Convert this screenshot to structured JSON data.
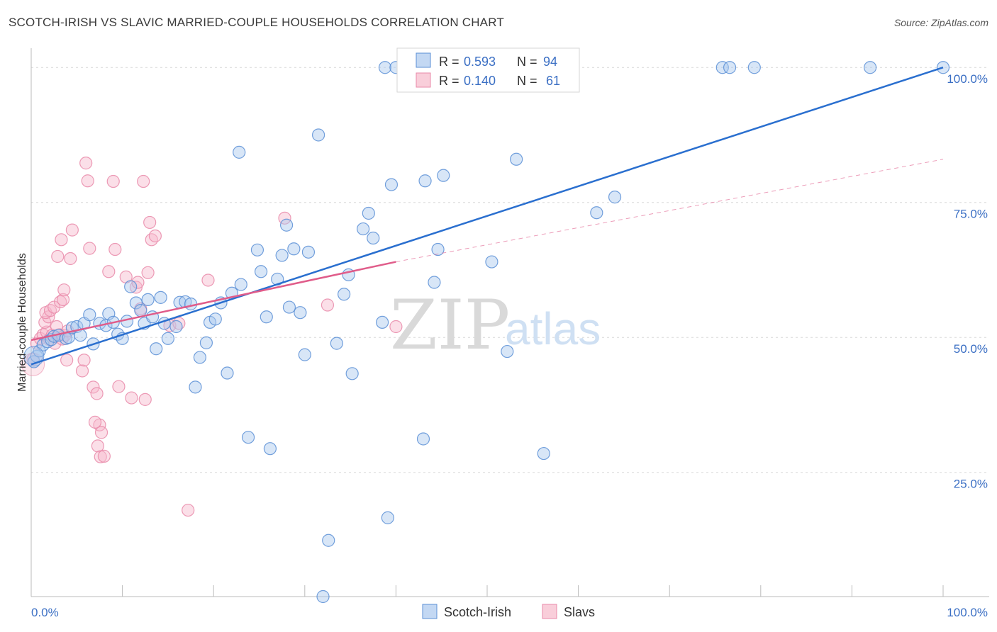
{
  "title": "SCOTCH-IRISH VS SLAVIC MARRIED-COUPLE HOUSEHOLDS CORRELATION CHART",
  "source": "Source: ZipAtlas.com",
  "watermark": {
    "zip": "ZIP",
    "atlas": "atlas"
  },
  "colors": {
    "blue_fill": "#a9c7ee",
    "blue_stroke": "#5b8fd6",
    "blue_line": "#2a6fcf",
    "pink_fill": "#f6b9cb",
    "pink_stroke": "#e98aa9",
    "pink_line": "#e05c8a",
    "grid": "#d9d9d9",
    "tick_text": "#3b6fc4"
  },
  "legend": {
    "rows": [
      {
        "r_label": "R = ",
        "r_value": "0.593",
        "n_label": "N = ",
        "n_value": "94"
      },
      {
        "r_label": "R = ",
        "r_value": "0.140",
        "n_label": "N = ",
        "n_value": "61"
      }
    ]
  },
  "chart_data": {
    "type": "scatter",
    "title": "SCOTCH-IRISH VS SLAVIC MARRIED-COUPLE HOUSEHOLDS CORRELATION CHART",
    "xlabel": "",
    "ylabel": "Married-couple Households",
    "xlim": [
      0,
      100
    ],
    "ylim": [
      2,
      102
    ],
    "y_ticks": [
      {
        "value": 25,
        "label": "25.0%"
      },
      {
        "value": 50,
        "label": "50.0%"
      },
      {
        "value": 75,
        "label": "75.0%"
      },
      {
        "value": 100,
        "label": "100.0%"
      }
    ],
    "x_tick_labels": {
      "min": "0.0%",
      "max": "100.0%"
    },
    "series": [
      {
        "name": "Scotch-Irish",
        "points": [
          [
            0.3,
            45.5
          ],
          [
            0.6,
            46.5
          ],
          [
            0.9,
            47.5
          ],
          [
            1.3,
            48.6
          ],
          [
            1.8,
            49.2
          ],
          [
            2.2,
            49.6
          ],
          [
            2.5,
            50.2
          ],
          [
            3.0,
            50.4
          ],
          [
            3.8,
            49.8
          ],
          [
            4.1,
            50.0
          ],
          [
            4.5,
            51.8
          ],
          [
            5.0,
            52.0
          ],
          [
            5.4,
            50.4
          ],
          [
            5.8,
            52.6
          ],
          [
            6.4,
            54.2
          ],
          [
            6.8,
            48.8
          ],
          [
            7.5,
            52.6
          ],
          [
            8.2,
            52.2
          ],
          [
            8.5,
            54.4
          ],
          [
            9.0,
            52.8
          ],
          [
            9.5,
            50.6
          ],
          [
            10.0,
            49.8
          ],
          [
            10.5,
            53.0
          ],
          [
            10.9,
            59.4
          ],
          [
            11.5,
            56.4
          ],
          [
            12.0,
            55.0
          ],
          [
            12.4,
            52.6
          ],
          [
            12.8,
            57.0
          ],
          [
            13.3,
            53.8
          ],
          [
            13.7,
            47.9
          ],
          [
            14.2,
            57.4
          ],
          [
            14.6,
            52.6
          ],
          [
            15.0,
            49.8
          ],
          [
            15.9,
            52.0
          ],
          [
            16.3,
            56.5
          ],
          [
            16.9,
            56.6
          ],
          [
            17.5,
            56.2
          ],
          [
            18.0,
            40.8
          ],
          [
            18.5,
            46.3
          ],
          [
            19.2,
            49.0
          ],
          [
            19.6,
            52.8
          ],
          [
            20.2,
            53.4
          ],
          [
            20.8,
            56.4
          ],
          [
            21.5,
            43.4
          ],
          [
            22.0,
            58.2
          ],
          [
            22.8,
            84.3
          ],
          [
            23.0,
            59.8
          ],
          [
            23.8,
            31.5
          ],
          [
            24.8,
            66.2
          ],
          [
            25.2,
            62.2
          ],
          [
            25.8,
            53.8
          ],
          [
            26.2,
            29.4
          ],
          [
            27.0,
            60.8
          ],
          [
            27.5,
            65.2
          ],
          [
            28.0,
            70.8
          ],
          [
            28.3,
            55.6
          ],
          [
            28.8,
            66.4
          ],
          [
            29.5,
            54.6
          ],
          [
            30.0,
            46.8
          ],
          [
            30.4,
            65.8
          ],
          [
            31.5,
            87.5
          ],
          [
            32.0,
            2.0
          ],
          [
            32.6,
            12.4
          ],
          [
            33.5,
            48.9
          ],
          [
            34.3,
            58.0
          ],
          [
            34.8,
            61.6
          ],
          [
            35.2,
            43.3
          ],
          [
            36.4,
            70.1
          ],
          [
            37.0,
            73.0
          ],
          [
            37.5,
            68.4
          ],
          [
            38.5,
            52.8
          ],
          [
            38.8,
            100.0
          ],
          [
            39.1,
            16.6
          ],
          [
            39.5,
            78.3
          ],
          [
            40.0,
            100.0
          ],
          [
            41.0,
            100.0
          ],
          [
            42.0,
            100.0
          ],
          [
            43.0,
            31.2
          ],
          [
            43.2,
            79.0
          ],
          [
            44.2,
            60.2
          ],
          [
            44.6,
            66.3
          ],
          [
            45.2,
            80.0
          ],
          [
            50.5,
            64.0
          ],
          [
            52.2,
            47.4
          ],
          [
            53.2,
            83.0
          ],
          [
            55.5,
            100.0
          ],
          [
            56.2,
            28.5
          ],
          [
            62.0,
            73.1
          ],
          [
            64.0,
            76.0
          ],
          [
            75.8,
            100.0
          ],
          [
            76.6,
            100.0
          ],
          [
            79.3,
            100.0
          ],
          [
            92.0,
            100.0
          ],
          [
            100.0,
            100.0
          ]
        ]
      },
      {
        "name": "Slavs",
        "points": [
          [
            0.2,
            46.0
          ],
          [
            0.6,
            48.9
          ],
          [
            1.0,
            49.8
          ],
          [
            1.3,
            50.5
          ],
          [
            1.7,
            51.0
          ],
          [
            2.0,
            49.6
          ],
          [
            2.3,
            50.4
          ],
          [
            2.6,
            48.9
          ],
          [
            2.8,
            52.0
          ],
          [
            3.1,
            50.5
          ],
          [
            3.4,
            49.7
          ],
          [
            3.7,
            50.4
          ],
          [
            4.0,
            51.2
          ],
          [
            1.5,
            52.8
          ],
          [
            1.9,
            53.8
          ],
          [
            1.6,
            54.6
          ],
          [
            2.1,
            55.0
          ],
          [
            2.5,
            55.6
          ],
          [
            3.2,
            56.6
          ],
          [
            3.5,
            57.0
          ],
          [
            3.6,
            58.8
          ],
          [
            3.9,
            45.8
          ],
          [
            4.3,
            64.6
          ],
          [
            4.5,
            69.9
          ],
          [
            2.9,
            65.0
          ],
          [
            3.3,
            68.1
          ],
          [
            5.6,
            43.8
          ],
          [
            5.8,
            45.8
          ],
          [
            6.0,
            82.3
          ],
          [
            6.2,
            79.0
          ],
          [
            6.4,
            66.5
          ],
          [
            6.8,
            40.8
          ],
          [
            7.2,
            39.6
          ],
          [
            7.5,
            33.8
          ],
          [
            7.7,
            32.4
          ],
          [
            7.0,
            34.3
          ],
          [
            7.3,
            29.9
          ],
          [
            7.6,
            27.9
          ],
          [
            8.0,
            28.0
          ],
          [
            8.5,
            62.2
          ],
          [
            9.0,
            78.9
          ],
          [
            9.2,
            66.3
          ],
          [
            9.6,
            40.9
          ],
          [
            10.4,
            61.2
          ],
          [
            11.0,
            38.8
          ],
          [
            11.5,
            59.3
          ],
          [
            11.7,
            60.2
          ],
          [
            12.0,
            55.3
          ],
          [
            12.3,
            78.9
          ],
          [
            12.5,
            38.5
          ],
          [
            12.8,
            62.0
          ],
          [
            13.0,
            71.3
          ],
          [
            13.2,
            68.1
          ],
          [
            13.6,
            68.8
          ],
          [
            15.2,
            52.2
          ],
          [
            16.2,
            52.6
          ],
          [
            17.2,
            18.0
          ],
          [
            19.4,
            60.6
          ],
          [
            27.8,
            72.1
          ],
          [
            32.5,
            56.0
          ],
          [
            40.0,
            52.0
          ]
        ]
      }
    ],
    "trend_lines": [
      {
        "series": "Scotch-Irish",
        "from": [
          0,
          45.0
        ],
        "to": [
          100,
          100.0
        ],
        "style": "solid"
      },
      {
        "series": "Slavs",
        "from": [
          0,
          49.5
        ],
        "to": [
          40,
          64.0
        ],
        "style": "solid"
      },
      {
        "series": "Slavs",
        "from": [
          40,
          64.0
        ],
        "to": [
          100,
          83.0
        ],
        "style": "dashed"
      }
    ],
    "legend_position": "top-center"
  }
}
